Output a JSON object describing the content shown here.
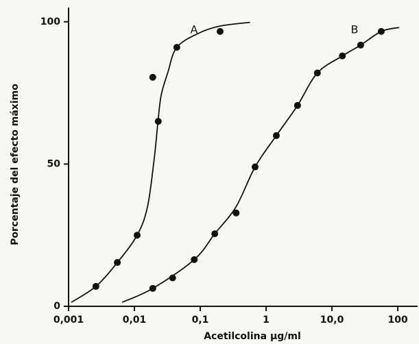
{
  "chart_data": {
    "type": "scatter",
    "xlabel": "Acetilcolina μg/ml",
    "ylabel": "Porcentaje del efecto máximo",
    "xscale": "log",
    "xlim": [
      0.001,
      200
    ],
    "ylim": [
      0,
      105
    ],
    "xticks": [
      {
        "value": 0.001,
        "label": "0,001"
      },
      {
        "value": 0.01,
        "label": "0,01"
      },
      {
        "value": 0.1,
        "label": "0,1"
      },
      1,
      {
        "value": 10,
        "label": "10,0"
      },
      100
    ],
    "yticks": [
      0,
      50,
      100
    ],
    "color": "#111111",
    "series": [
      {
        "name": "A",
        "x": [
          0.0026,
          0.0055,
          0.011,
          0.023,
          0.019,
          0.044,
          0.2
        ],
        "values": [
          7,
          15.4,
          25,
          65,
          80.5,
          91,
          96.6
        ]
      },
      {
        "name": "B",
        "x": [
          0.019,
          0.038,
          0.081,
          0.166,
          0.35,
          0.68,
          1.43,
          3.0,
          6.0,
          14.4,
          27.3,
          56
        ],
        "values": [
          6.3,
          10,
          16.4,
          25.5,
          32.8,
          49,
          60,
          70.6,
          82,
          88,
          91.8,
          96.6
        ]
      }
    ],
    "curves": [
      {
        "x": [
          0.0011,
          0.0026,
          0.0055,
          0.011,
          0.0158,
          0.02,
          0.0226,
          0.0254,
          0.032,
          0.044,
          0.095,
          0.2,
          0.57
        ],
        "values": [
          1.4,
          7,
          15.4,
          25,
          35,
          52,
          64,
          74,
          82,
          91,
          96,
          98.5,
          99.8
        ]
      },
      {
        "x": [
          0.0065,
          0.019,
          0.081,
          0.166,
          0.35,
          0.68,
          1.43,
          3.0,
          6.0,
          14.4,
          27.3,
          56,
          105
        ],
        "values": [
          1.4,
          6.3,
          16.4,
          25.5,
          35,
          49,
          60,
          70.6,
          82,
          88,
          91.8,
          96.6,
          98
        ]
      }
    ]
  }
}
